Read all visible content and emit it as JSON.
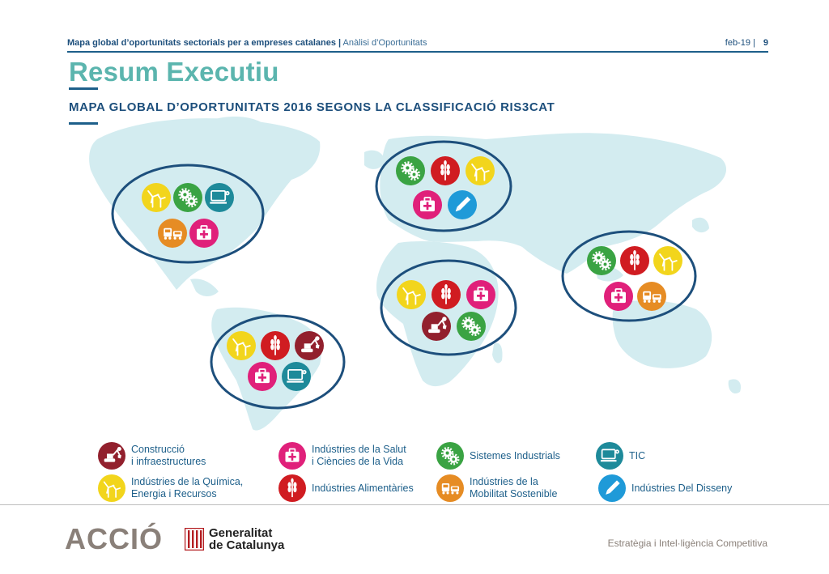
{
  "header": {
    "doc_title": "Mapa global d’oportunitats sectorials per a empreses catalanes |",
    "doc_subtitle": "Anàlisi d’Oportunitats",
    "date": "feb-19  |",
    "page": "9"
  },
  "title": "Resum Executiu",
  "subtitle": "MAPA GLOBAL D’OPORTUNITATS 2016 SEGONS LA CLASSIFICACIÓ RIS3CAT",
  "colors": {
    "energy": "#f2d51c",
    "industrial": "#3aa343",
    "tic": "#1e8a9a",
    "mobility": "#e68c24",
    "health": "#e0207a",
    "food": "#d01c21",
    "design": "#1f9ad8",
    "construction": "#92202d",
    "ellipse": "#1d4f7c",
    "land": "#d3ecf0"
  },
  "regions": [
    {
      "name": "north-america",
      "icons": [
        [
          "energy",
          "industrial",
          "tic"
        ],
        [
          "mobility",
          "health"
        ]
      ]
    },
    {
      "name": "europe",
      "icons": [
        [
          "industrial",
          "food",
          "energy"
        ],
        [
          "health",
          "design"
        ]
      ]
    },
    {
      "name": "asia",
      "icons": [
        [
          "industrial",
          "food",
          "energy"
        ],
        [
          "health",
          "mobility"
        ]
      ]
    },
    {
      "name": "africa",
      "icons": [
        [
          "energy",
          "food",
          "health"
        ],
        [
          "construction",
          "industrial"
        ]
      ]
    },
    {
      "name": "south-america",
      "icons": [
        [
          "energy",
          "food",
          "construction"
        ],
        [
          "health",
          "tic"
        ]
      ]
    }
  ],
  "legend": [
    {
      "sector": "construction",
      "icon": "excavator-icon",
      "lines": [
        "Construcció",
        "i infraestructures"
      ]
    },
    {
      "sector": "health",
      "icon": "medical-kit-icon",
      "lines": [
        "Indústries de la Salut",
        "i Ciències de la Vida"
      ]
    },
    {
      "sector": "industrial",
      "icon": "gears-icon",
      "lines": [
        "Sistemes Industrials"
      ]
    },
    {
      "sector": "tic",
      "icon": "computer-icon",
      "lines": [
        "TIC"
      ]
    },
    {
      "sector": "energy",
      "icon": "wind-turbine-icon",
      "lines": [
        "Indústries de la Química,",
        "Energia i Recursos"
      ]
    },
    {
      "sector": "food",
      "icon": "wheat-icon",
      "lines": [
        "Indústries Alimentàries"
      ]
    },
    {
      "sector": "mobility",
      "icon": "vehicles-icon",
      "lines": [
        "Indústries de la",
        "Mobilitat Sostenible"
      ]
    },
    {
      "sector": "design",
      "icon": "pencil-icon",
      "lines": [
        "Indústries Del Disseny"
      ]
    }
  ],
  "footer": {
    "brand": "ACCIÓ",
    "gov_line1": "Generalitat",
    "gov_line2": "de Catalunya",
    "tagline": "Estratègia i Intel·ligència Competitiva"
  }
}
